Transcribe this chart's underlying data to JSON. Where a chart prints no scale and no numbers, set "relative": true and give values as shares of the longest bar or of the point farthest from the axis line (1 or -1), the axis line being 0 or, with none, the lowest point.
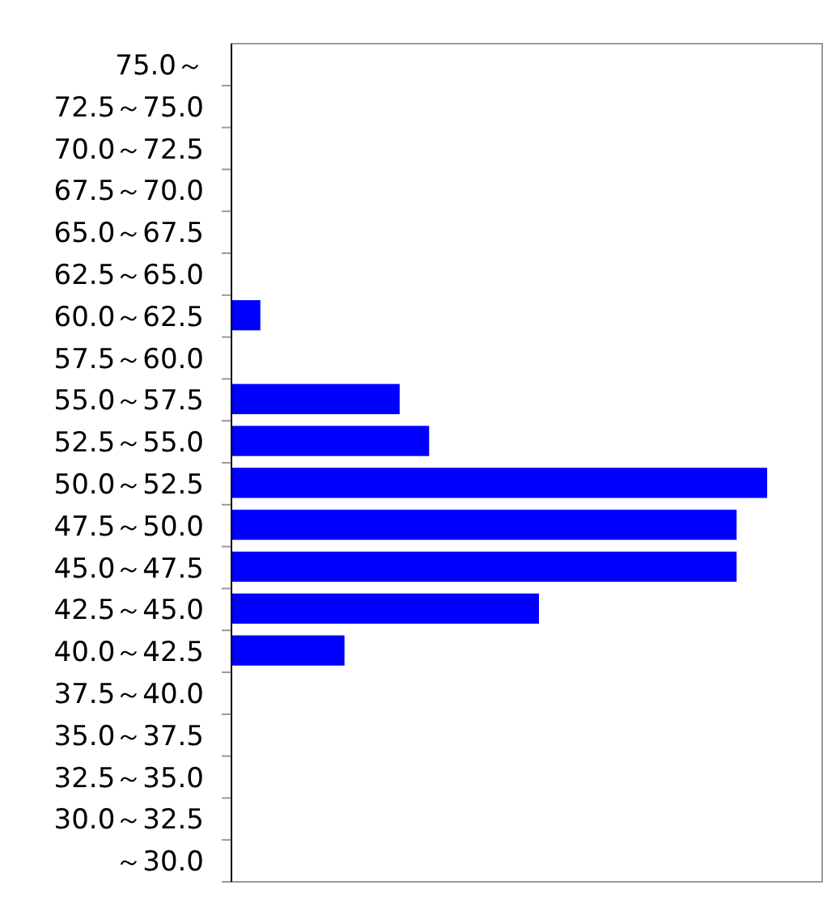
{
  "chart_data": {
    "type": "bar",
    "orientation": "horizontal",
    "relative": true,
    "color": "#0000ff",
    "categories": [
      "75.0～",
      "72.5～75.0",
      "70.0～72.5",
      "67.5～70.0",
      "65.0～67.5",
      "62.5～65.0",
      "60.0～62.5",
      "57.5～60.0",
      "55.0～57.5",
      "52.5～55.0",
      "50.0～52.5",
      "47.5～50.0",
      "45.0～47.5",
      "42.5～45.0",
      "40.0～42.5",
      "37.5～40.0",
      "35.0～37.5",
      "32.5～35.0",
      "30.0～32.5",
      "～30.0"
    ],
    "values": [
      0,
      0,
      0,
      0,
      0,
      0,
      0.054,
      0,
      0.314,
      0.369,
      1,
      0.943,
      0.943,
      0.574,
      0.211,
      0,
      0,
      0,
      0,
      0
    ]
  }
}
